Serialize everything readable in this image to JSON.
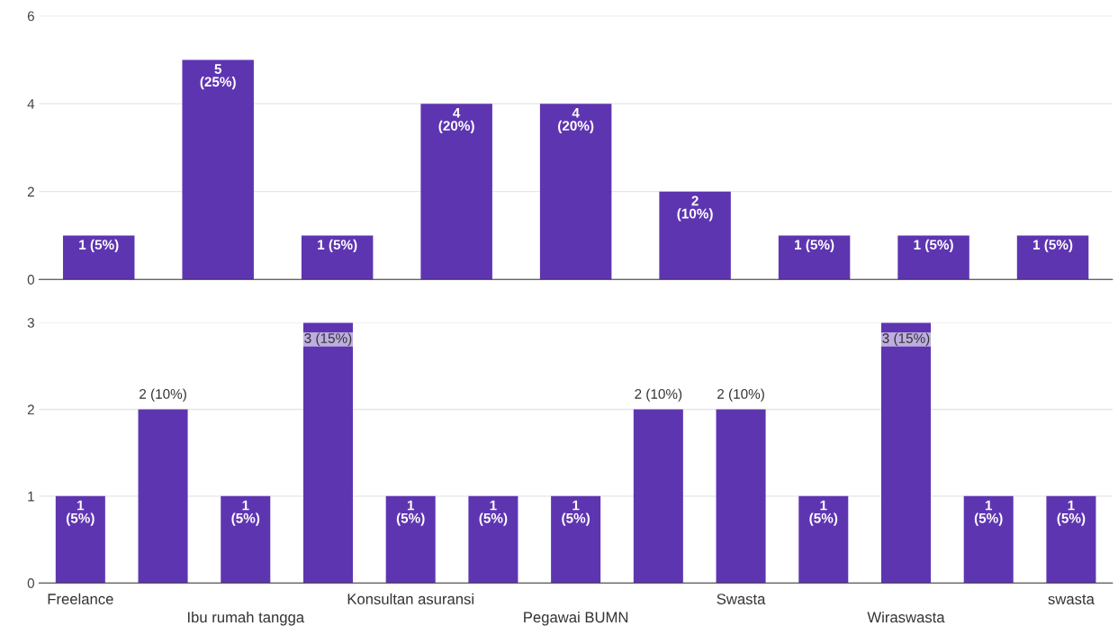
{
  "chart_data": [
    {
      "type": "bar",
      "categories": [
        null,
        null,
        null,
        null,
        null,
        null,
        null,
        null,
        null
      ],
      "series": [
        {
          "color": "#5e35b1",
          "values": [
            1,
            5,
            1,
            4,
            4,
            2,
            1,
            1,
            1
          ],
          "value_labels": [
            "1 (5%)",
            "5\n(25%)",
            "1 (5%)",
            "4\n(20%)",
            "4\n(20%)",
            "2\n(10%)",
            "1 (5%)",
            "1 (5%)",
            "1 (5%)"
          ]
        }
      ],
      "ylim": [
        0,
        6
      ],
      "yticks": [
        0,
        2,
        4,
        6
      ],
      "grid": "y"
    },
    {
      "type": "bar",
      "categories": [
        "Freelance",
        null,
        "Ibu rumah tangga",
        null,
        "Konsultan asuransi",
        null,
        "Pegawai BUMN",
        null,
        "Swasta",
        null,
        "Wiraswasta",
        null,
        "swasta"
      ],
      "series": [
        {
          "color": "#5e35b1",
          "values": [
            1,
            2,
            1,
            3,
            1,
            1,
            1,
            2,
            2,
            1,
            3,
            1,
            1
          ],
          "value_labels": [
            "1\n(5%)",
            "2 (10%)",
            "1\n(5%)",
            "3 (15%)",
            "1\n(5%)",
            "1\n(5%)",
            "1\n(5%)",
            "2 (10%)",
            "2 (10%)",
            "1\n(5%)",
            "3 (15%)",
            "1\n(5%)",
            "1\n(5%)"
          ]
        }
      ],
      "ylim": [
        0,
        3
      ],
      "yticks": [
        0,
        1,
        2,
        3
      ],
      "grid": "y"
    }
  ]
}
